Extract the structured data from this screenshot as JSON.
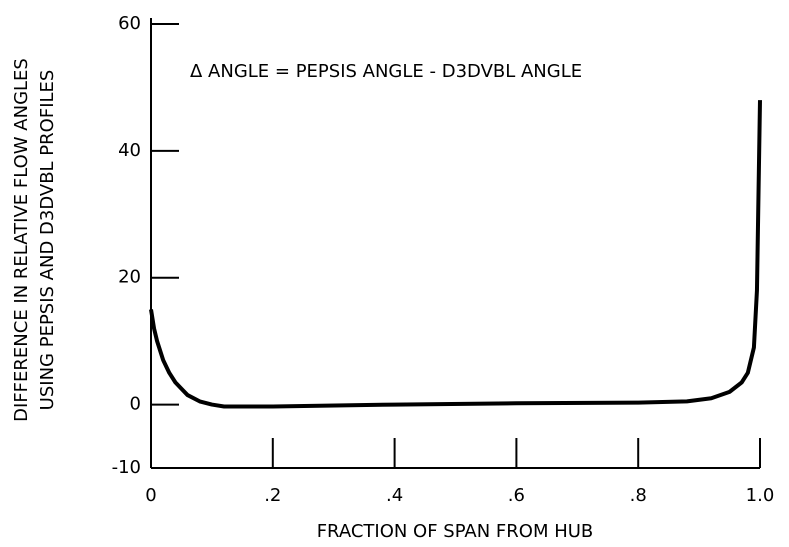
{
  "chart_data": {
    "type": "line",
    "annotation": "Δ ANGLE = PEPSIS ANGLE - D3DVBL ANGLE",
    "xlabel": "FRACTION OF SPAN FROM HUB",
    "ylabel": [
      "DIFFERENCE IN RELATIVE FLOW ANGLES",
      "USING PEPSIS AND D3DVBL PROFILES"
    ],
    "x": [
      0,
      0.005,
      0.01,
      0.02,
      0.03,
      0.04,
      0.05,
      0.06,
      0.08,
      0.1,
      0.12,
      0.2,
      0.4,
      0.6,
      0.8,
      0.88,
      0.92,
      0.95,
      0.97,
      0.98,
      0.99,
      0.995,
      1.0
    ],
    "series": [
      {
        "color": "#000000",
        "values": [
          15,
          12,
          10,
          7,
          5,
          3.5,
          2.5,
          1.5,
          0.5,
          0,
          -0.3,
          -0.3,
          0,
          0.2,
          0.3,
          0.5,
          1,
          2,
          3.5,
          5,
          9,
          18,
          48
        ]
      }
    ],
    "xlim": [
      0,
      1
    ],
    "xticks": [
      0,
      {
        "value": 0.2,
        "label": ".2"
      },
      {
        "value": 0.4,
        "label": ".4"
      },
      {
        "value": 0.6,
        "label": ".6"
      },
      {
        "value": 0.8,
        "label": ".8"
      },
      {
        "value": 1,
        "label": "1.0"
      }
    ],
    "ylim": [
      -10,
      60
    ],
    "yticks": [
      -10,
      0,
      20,
      40,
      60
    ]
  }
}
